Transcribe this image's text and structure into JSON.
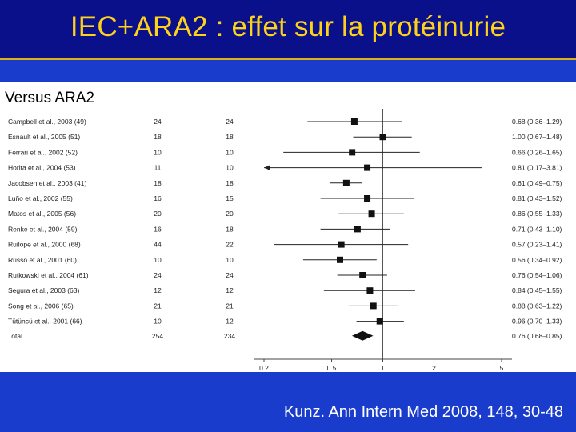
{
  "slide": {
    "title": "IEC+ARA2 : effet sur la protéinurie",
    "subtitle": "Versus ARA2",
    "citation": "Kunz. Ann Intern Med 2008, 148, 30-48"
  },
  "colors": {
    "title_bar": "#0a0f8a",
    "title_text": "#ffd21a",
    "background": "#1a3ccc",
    "panel": "#ffffff",
    "marker": "#111111"
  },
  "chart_data": {
    "type": "forest",
    "x_scale": "log",
    "xlim": [
      0.2,
      5
    ],
    "x_ticks": [
      0.2,
      0.5,
      1,
      2,
      5
    ],
    "reference_line": 1,
    "studies": [
      {
        "label": "Campbell et al., 2003 (49)",
        "n1": "24",
        "n2": "24",
        "est": 0.68,
        "lo": 0.36,
        "hi": 1.29,
        "ci_text": "0.68 (0.36–1.29)"
      },
      {
        "label": "Esnault et al., 2005 (51)",
        "n1": "18",
        "n2": "18",
        "est": 1.0,
        "lo": 0.67,
        "hi": 1.48,
        "ci_text": "1.00 (0.67–1.48)"
      },
      {
        "label": "Ferrari et al., 2002 (52)",
        "n1": "10",
        "n2": "10",
        "est": 0.66,
        "lo": 0.26,
        "hi": 1.65,
        "ci_text": "0.66 (0.26–1.65)"
      },
      {
        "label": "Horita et al., 2004 (53)",
        "n1": "11",
        "n2": "10",
        "est": 0.81,
        "lo": 0.17,
        "hi": 3.81,
        "ci_text": "0.81 (0.17–3.81)"
      },
      {
        "label": "Jacobsen et al., 2003 (41)",
        "n1": "18",
        "n2": "18",
        "est": 0.61,
        "lo": 0.49,
        "hi": 0.75,
        "ci_text": "0.61 (0.49–0.75)"
      },
      {
        "label": "Luño et al., 2002 (55)",
        "n1": "16",
        "n2": "15",
        "est": 0.81,
        "lo": 0.43,
        "hi": 1.52,
        "ci_text": "0.81 (0.43–1.52)"
      },
      {
        "label": "Matos et al., 2005 (56)",
        "n1": "20",
        "n2": "20",
        "est": 0.86,
        "lo": 0.55,
        "hi": 1.33,
        "ci_text": "0.86 (0.55–1.33)"
      },
      {
        "label": "Renke et al., 2004 (59)",
        "n1": "16",
        "n2": "18",
        "est": 0.71,
        "lo": 0.43,
        "hi": 1.1,
        "ci_text": "0.71 (0.43–1.10)"
      },
      {
        "label": "Ruilope et al., 2000 (68)",
        "n1": "44",
        "n2": "22",
        "est": 0.57,
        "lo": 0.23,
        "hi": 1.41,
        "ci_text": "0.57 (0.23–1.41)"
      },
      {
        "label": "Russo et al., 2001 (60)",
        "n1": "10",
        "n2": "10",
        "est": 0.56,
        "lo": 0.34,
        "hi": 0.92,
        "ci_text": "0.56 (0.34–0.92)"
      },
      {
        "label": "Rutkowski et al., 2004 (61)",
        "n1": "24",
        "n2": "24",
        "est": 0.76,
        "lo": 0.54,
        "hi": 1.06,
        "ci_text": "0.76 (0.54–1.06)"
      },
      {
        "label": "Segura et al., 2003 (63)",
        "n1": "12",
        "n2": "12",
        "est": 0.84,
        "lo": 0.45,
        "hi": 1.55,
        "ci_text": "0.84 (0.45–1.55)"
      },
      {
        "label": "Song et al., 2006 (65)",
        "n1": "21",
        "n2": "21",
        "est": 0.88,
        "lo": 0.63,
        "hi": 1.22,
        "ci_text": "0.88 (0.63–1.22)"
      },
      {
        "label": "Tütüncü et al., 2001 (66)",
        "n1": "10",
        "n2": "12",
        "est": 0.96,
        "lo": 0.7,
        "hi": 1.33,
        "ci_text": "0.96 (0.70–1.33)"
      }
    ],
    "total": {
      "label": "Total",
      "n1": "254",
      "n2": "234",
      "est": 0.76,
      "lo": 0.68,
      "hi": 0.85,
      "ci_text": "0.76 (0.68–0.85)"
    }
  }
}
